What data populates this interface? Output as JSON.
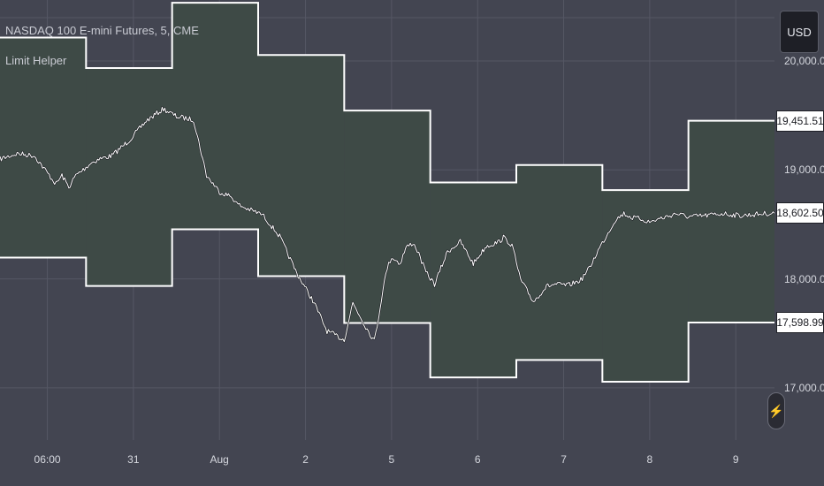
{
  "legend": {
    "symbol": "NASDAQ 100 E-mini Futures, 5, CME",
    "indicator": "Limit Helper"
  },
  "currency_button": "USD",
  "icons": {
    "flash": "lightning-icon"
  },
  "colors": {
    "background": "#434551",
    "band_fill": "#3e4a46",
    "band_line": "#ffffff",
    "price_line": "#ffffff",
    "grid": "#555764"
  },
  "chart_data": {
    "type": "line",
    "title": "NASDAQ 100 E-mini Futures, 5, CME",
    "xlabel": "",
    "ylabel": "",
    "ylim": [
      16520,
      20560
    ],
    "grid": true,
    "x_ticks": [
      {
        "label": "06:00",
        "x": 0.25
      },
      {
        "label": "31",
        "x": 1.25
      },
      {
        "label": "Aug",
        "x": 2.25
      },
      {
        "label": "2",
        "x": 3.25
      },
      {
        "label": "5",
        "x": 4.25
      },
      {
        "label": "6",
        "x": 5.25
      },
      {
        "label": "7",
        "x": 6.25
      },
      {
        "label": "8",
        "x": 7.25
      },
      {
        "label": "9",
        "x": 8.25
      }
    ],
    "y_ticks": [
      17000,
      18000,
      19000,
      20000
    ],
    "y_tick_labels": [
      "17,000.00",
      "18,000.00",
      "19,000.00",
      "20,000.00"
    ],
    "price_labels": [
      {
        "value": 19451.51,
        "label": "19,451.51"
      },
      {
        "value": 18602.5,
        "label": "18,602.50"
      },
      {
        "value": 17598.99,
        "label": "17,598.99"
      }
    ],
    "series": [
      {
        "kind": "upper_limit",
        "steps": [
          {
            "x0": -0.3,
            "x1": 0.7,
            "y": 20215
          },
          {
            "x0": 0.7,
            "x1": 1.7,
            "y": 19935
          },
          {
            "x0": 1.7,
            "x1": 2.7,
            "y": 20535
          },
          {
            "x0": 2.7,
            "x1": 3.7,
            "y": 20055
          },
          {
            "x0": 3.7,
            "x1": 4.7,
            "y": 19545
          },
          {
            "x0": 4.7,
            "x1": 5.7,
            "y": 18885
          },
          {
            "x0": 5.7,
            "x1": 6.7,
            "y": 19045
          },
          {
            "x0": 6.7,
            "x1": 7.7,
            "y": 18815
          },
          {
            "x0": 7.7,
            "x1": 8.7,
            "y": 19451.51
          }
        ]
      },
      {
        "kind": "lower_limit",
        "steps": [
          {
            "x0": -0.3,
            "x1": 0.7,
            "y": 18195
          },
          {
            "x0": 0.7,
            "x1": 1.7,
            "y": 17935
          },
          {
            "x0": 1.7,
            "x1": 2.7,
            "y": 18455
          },
          {
            "x0": 2.7,
            "x1": 3.7,
            "y": 18025
          },
          {
            "x0": 3.7,
            "x1": 4.7,
            "y": 17595
          },
          {
            "x0": 4.7,
            "x1": 5.7,
            "y": 17095
          },
          {
            "x0": 5.7,
            "x1": 6.7,
            "y": 17255
          },
          {
            "x0": 6.7,
            "x1": 7.7,
            "y": 17055
          },
          {
            "x0": 7.7,
            "x1": 8.7,
            "y": 17598.99
          }
        ]
      },
      {
        "kind": "price",
        "x": [
          -0.3,
          -0.1,
          0.1,
          0.35,
          0.42,
          0.5,
          0.58,
          0.65,
          0.75,
          0.85,
          1.0,
          1.2,
          1.4,
          1.6,
          1.75,
          1.95,
          2.1,
          2.25,
          2.4,
          2.45,
          2.55,
          2.65,
          2.75,
          2.95,
          3.15,
          3.35,
          3.5,
          3.7,
          3.8,
          3.95,
          4.05,
          4.1,
          4.15,
          4.2,
          4.25,
          4.35,
          4.4,
          4.42,
          4.5,
          4.55,
          4.65,
          4.75,
          4.9,
          5.05,
          5.2,
          5.35,
          5.5,
          5.55,
          5.65,
          5.75,
          5.9,
          6.05,
          6.15,
          6.3,
          6.45,
          6.55,
          6.65,
          6.75,
          6.85,
          6.95,
          7.05,
          7.15,
          7.25,
          7.35,
          7.45,
          7.55,
          7.7,
          7.9,
          8.1,
          8.3,
          8.45,
          8.6,
          8.7
        ],
        "y": [
          19100,
          19150,
          19130,
          18870,
          18950,
          18840,
          18950,
          18990,
          19060,
          19100,
          19130,
          19270,
          19450,
          19560,
          19490,
          19460,
          18950,
          18800,
          18750,
          18690,
          18650,
          18620,
          18590,
          18390,
          18050,
          17780,
          17520,
          17440,
          17780,
          17560,
          17430,
          17650,
          17910,
          18100,
          18200,
          18140,
          18250,
          18290,
          18330,
          18260,
          18060,
          17950,
          18250,
          18340,
          18140,
          18300,
          18340,
          18380,
          18310,
          17990,
          17790,
          17930,
          17950,
          17940,
          17990,
          18100,
          18260,
          18400,
          18540,
          18600,
          18560,
          18550,
          18520,
          18550,
          18570,
          18600,
          18570,
          18580,
          18600,
          18580,
          18590,
          18600,
          18602.5
        ]
      }
    ]
  }
}
